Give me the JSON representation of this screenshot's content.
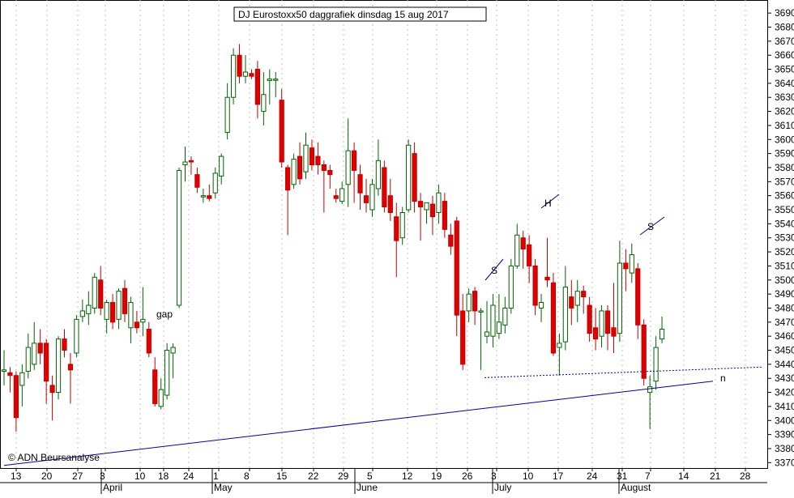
{
  "chart_data": {
    "type": "candlestick",
    "title": "DJ Eurostoxx50 daggrafiek dinsdag 15 aug 2017",
    "credit": "© ADN Beursanalyse",
    "ylim": [
      3367,
      3700
    ],
    "yticks": [
      3370,
      3380,
      3390,
      3400,
      3410,
      3420,
      3430,
      3440,
      3450,
      3460,
      3470,
      3480,
      3490,
      3500,
      3510,
      3520,
      3530,
      3540,
      3550,
      3560,
      3570,
      3580,
      3590,
      3600,
      3610,
      3620,
      3630,
      3640,
      3650,
      3660,
      3670,
      3680,
      3690
    ],
    "xtick_labels": [
      "13",
      "20",
      "27",
      "3",
      "10",
      "18",
      "24",
      "1",
      "8",
      "15",
      "22",
      "29",
      "5",
      "12",
      "19",
      "26",
      "3",
      "10",
      "17",
      "24",
      "31",
      "7",
      "14",
      "21",
      "28"
    ],
    "month_labels": [
      "April",
      "May",
      "June",
      "July",
      "August"
    ],
    "candles": [
      {
        "o": 3435,
        "h": 3450,
        "l": 3425,
        "c": 3436
      },
      {
        "o": 3434,
        "h": 3438,
        "l": 3420,
        "c": 3432
      },
      {
        "o": 3432,
        "h": 3435,
        "l": 3392,
        "c": 3402
      },
      {
        "o": 3425,
        "h": 3440,
        "l": 3410,
        "c": 3434
      },
      {
        "o": 3435,
        "h": 3462,
        "l": 3430,
        "c": 3452
      },
      {
        "o": 3440,
        "h": 3470,
        "l": 3436,
        "c": 3455
      },
      {
        "o": 3455,
        "h": 3465,
        "l": 3440,
        "c": 3448
      },
      {
        "o": 3455,
        "h": 3458,
        "l": 3412,
        "c": 3428
      },
      {
        "o": 3425,
        "h": 3432,
        "l": 3400,
        "c": 3420
      },
      {
        "o": 3420,
        "h": 3460,
        "l": 3415,
        "c": 3458
      },
      {
        "o": 3458,
        "h": 3465,
        "l": 3445,
        "c": 3450
      },
      {
        "o": 3440,
        "h": 3448,
        "l": 3412,
        "c": 3436
      },
      {
        "o": 3448,
        "h": 3475,
        "l": 3445,
        "c": 3472
      },
      {
        "o": 3474,
        "h": 3486,
        "l": 3470,
        "c": 3478
      },
      {
        "o": 3476,
        "h": 3492,
        "l": 3468,
        "c": 3482
      },
      {
        "o": 3480,
        "h": 3505,
        "l": 3476,
        "c": 3502
      },
      {
        "o": 3500,
        "h": 3510,
        "l": 3475,
        "c": 3480
      },
      {
        "o": 3472,
        "h": 3486,
        "l": 3462,
        "c": 3484
      },
      {
        "o": 3484,
        "h": 3490,
        "l": 3465,
        "c": 3470
      },
      {
        "o": 3472,
        "h": 3494,
        "l": 3465,
        "c": 3492
      },
      {
        "o": 3494,
        "h": 3500,
        "l": 3470,
        "c": 3476
      },
      {
        "o": 3466,
        "h": 3488,
        "l": 3455,
        "c": 3484
      },
      {
        "o": 3470,
        "h": 3478,
        "l": 3462,
        "c": 3466
      },
      {
        "o": 3470,
        "h": 3495,
        "l": 3460,
        "c": 3472
      },
      {
        "o": 3465,
        "h": 3470,
        "l": 3445,
        "c": 3448
      },
      {
        "o": 3436,
        "h": 3445,
        "l": 3410,
        "c": 3412
      },
      {
        "o": 3410,
        "h": 3430,
        "l": 3408,
        "c": 3422
      },
      {
        "o": 3418,
        "h": 3455,
        "l": 3415,
        "c": 3450
      },
      {
        "o": 3448,
        "h": 3455,
        "l": 3430,
        "c": 3452
      },
      {
        "o": 3482,
        "h": 3580,
        "l": 3480,
        "c": 3578
      },
      {
        "o": 3582,
        "h": 3595,
        "l": 3570,
        "c": 3584
      },
      {
        "o": 3585,
        "h": 3588,
        "l": 3575,
        "c": 3584
      },
      {
        "o": 3575,
        "h": 3580,
        "l": 3562,
        "c": 3566
      },
      {
        "o": 3560,
        "h": 3565,
        "l": 3555,
        "c": 3560
      },
      {
        "o": 3560,
        "h": 3568,
        "l": 3556,
        "c": 3558
      },
      {
        "o": 3562,
        "h": 3580,
        "l": 3558,
        "c": 3576
      },
      {
        "o": 3574,
        "h": 3590,
        "l": 3568,
        "c": 3588
      },
      {
        "o": 3605,
        "h": 3640,
        "l": 3600,
        "c": 3630
      },
      {
        "o": 3630,
        "h": 3665,
        "l": 3625,
        "c": 3660
      },
      {
        "o": 3660,
        "h": 3668,
        "l": 3640,
        "c": 3645
      },
      {
        "o": 3645,
        "h": 3660,
        "l": 3640,
        "c": 3648
      },
      {
        "o": 3647,
        "h": 3650,
        "l": 3643,
        "c": 3645
      },
      {
        "o": 3650,
        "h": 3656,
        "l": 3615,
        "c": 3625
      },
      {
        "o": 3620,
        "h": 3648,
        "l": 3610,
        "c": 3632
      },
      {
        "o": 3642,
        "h": 3650,
        "l": 3625,
        "c": 3643
      },
      {
        "o": 3643,
        "h": 3648,
        "l": 3630,
        "c": 3643
      },
      {
        "o": 3628,
        "h": 3636,
        "l": 3580,
        "c": 3584
      },
      {
        "o": 3580,
        "h": 3582,
        "l": 3532,
        "c": 3564
      },
      {
        "o": 3568,
        "h": 3590,
        "l": 3565,
        "c": 3586
      },
      {
        "o": 3588,
        "h": 3598,
        "l": 3568,
        "c": 3572
      },
      {
        "o": 3577,
        "h": 3605,
        "l": 3572,
        "c": 3596
      },
      {
        "o": 3594,
        "h": 3600,
        "l": 3578,
        "c": 3582
      },
      {
        "o": 3588,
        "h": 3598,
        "l": 3575,
        "c": 3582
      },
      {
        "o": 3582,
        "h": 3585,
        "l": 3548,
        "c": 3578
      },
      {
        "o": 3578,
        "h": 3582,
        "l": 3565,
        "c": 3575
      },
      {
        "o": 3560,
        "h": 3565,
        "l": 3555,
        "c": 3558
      },
      {
        "o": 3556,
        "h": 3570,
        "l": 3554,
        "c": 3565
      },
      {
        "o": 3568,
        "h": 3615,
        "l": 3552,
        "c": 3592
      },
      {
        "o": 3592,
        "h": 3598,
        "l": 3555,
        "c": 3578
      },
      {
        "o": 3575,
        "h": 3582,
        "l": 3550,
        "c": 3562
      },
      {
        "o": 3560,
        "h": 3572,
        "l": 3548,
        "c": 3555
      },
      {
        "o": 3550,
        "h": 3572,
        "l": 3545,
        "c": 3568
      },
      {
        "o": 3565,
        "h": 3600,
        "l": 3560,
        "c": 3585
      },
      {
        "o": 3580,
        "h": 3585,
        "l": 3548,
        "c": 3552
      },
      {
        "o": 3560,
        "h": 3572,
        "l": 3542,
        "c": 3548
      },
      {
        "o": 3545,
        "h": 3555,
        "l": 3502,
        "c": 3528
      },
      {
        "o": 3530,
        "h": 3552,
        "l": 3525,
        "c": 3548
      },
      {
        "o": 3550,
        "h": 3600,
        "l": 3548,
        "c": 3596
      },
      {
        "o": 3590,
        "h": 3598,
        "l": 3548,
        "c": 3556
      },
      {
        "o": 3556,
        "h": 3562,
        "l": 3528,
        "c": 3552
      },
      {
        "o": 3550,
        "h": 3555,
        "l": 3540,
        "c": 3555
      },
      {
        "o": 3554,
        "h": 3560,
        "l": 3532,
        "c": 3545
      },
      {
        "o": 3548,
        "h": 3568,
        "l": 3540,
        "c": 3562
      },
      {
        "o": 3556,
        "h": 3562,
        "l": 3530,
        "c": 3536
      },
      {
        "o": 3532,
        "h": 3540,
        "l": 3518,
        "c": 3524
      },
      {
        "o": 3542,
        "h": 3545,
        "l": 3460,
        "c": 3475
      },
      {
        "o": 3478,
        "h": 3490,
        "l": 3436,
        "c": 3440
      },
      {
        "o": 3478,
        "h": 3494,
        "l": 3470,
        "c": 3490
      },
      {
        "o": 3492,
        "h": 3495,
        "l": 3468,
        "c": 3478
      },
      {
        "o": 3478,
        "h": 3480,
        "l": 3436,
        "c": 3478
      },
      {
        "o": 3460,
        "h": 3485,
        "l": 3455,
        "c": 3463
      },
      {
        "o": 3460,
        "h": 3490,
        "l": 3452,
        "c": 3482
      },
      {
        "o": 3462,
        "h": 3490,
        "l": 3458,
        "c": 3470
      },
      {
        "o": 3468,
        "h": 3488,
        "l": 3462,
        "c": 3480
      },
      {
        "o": 3480,
        "h": 3515,
        "l": 3476,
        "c": 3510
      },
      {
        "o": 3510,
        "h": 3540,
        "l": 3508,
        "c": 3532
      },
      {
        "o": 3530,
        "h": 3535,
        "l": 3508,
        "c": 3522
      },
      {
        "o": 3525,
        "h": 3532,
        "l": 3498,
        "c": 3510
      },
      {
        "o": 3510,
        "h": 3515,
        "l": 3475,
        "c": 3482
      },
      {
        "o": 3480,
        "h": 3490,
        "l": 3470,
        "c": 3484
      },
      {
        "o": 3502,
        "h": 3530,
        "l": 3495,
        "c": 3500
      },
      {
        "o": 3498,
        "h": 3505,
        "l": 3446,
        "c": 3448
      },
      {
        "o": 3452,
        "h": 3462,
        "l": 3432,
        "c": 3455
      },
      {
        "o": 3456,
        "h": 3510,
        "l": 3450,
        "c": 3495
      },
      {
        "o": 3488,
        "h": 3500,
        "l": 3468,
        "c": 3480
      },
      {
        "o": 3482,
        "h": 3500,
        "l": 3470,
        "c": 3492
      },
      {
        "o": 3492,
        "h": 3496,
        "l": 3476,
        "c": 3488
      },
      {
        "o": 3482,
        "h": 3488,
        "l": 3456,
        "c": 3462
      },
      {
        "o": 3466,
        "h": 3480,
        "l": 3450,
        "c": 3458
      },
      {
        "o": 3460,
        "h": 3482,
        "l": 3452,
        "c": 3478
      },
      {
        "o": 3478,
        "h": 3482,
        "l": 3450,
        "c": 3462
      },
      {
        "o": 3466,
        "h": 3498,
        "l": 3448,
        "c": 3460
      },
      {
        "o": 3462,
        "h": 3528,
        "l": 3456,
        "c": 3512
      },
      {
        "o": 3512,
        "h": 3522,
        "l": 3492,
        "c": 3508
      },
      {
        "o": 3505,
        "h": 3526,
        "l": 3498,
        "c": 3518
      },
      {
        "o": 3508,
        "h": 3512,
        "l": 3458,
        "c": 3468
      },
      {
        "o": 3468,
        "h": 3472,
        "l": 3425,
        "c": 3430
      },
      {
        "o": 3420,
        "h": 3432,
        "l": 3394,
        "c": 3424
      },
      {
        "o": 3428,
        "h": 3460,
        "l": 3422,
        "c": 3452
      },
      {
        "o": 3458,
        "h": 3474,
        "l": 3455,
        "c": 3465
      }
    ],
    "annotations": [
      {
        "text": "gap",
        "value": 3475
      },
      {
        "text": "S",
        "value": 3505
      },
      {
        "text": "H",
        "value": 3549
      },
      {
        "text": "S",
        "value": 3529
      },
      {
        "text": "n",
        "value": 3427
      }
    ],
    "trendlines": [
      {
        "name": "support",
        "from": 3368,
        "to": 3428
      },
      {
        "name": "neckline",
        "value": 3438
      }
    ]
  },
  "colors": {
    "up_candle_fill": "#ffffff",
    "up_candle_stroke": "#006400",
    "down_candle_fill": "#e00000",
    "down_candle_stroke": "#c00000",
    "trendline": "#0000a0",
    "grid": "#bfbfbf"
  }
}
